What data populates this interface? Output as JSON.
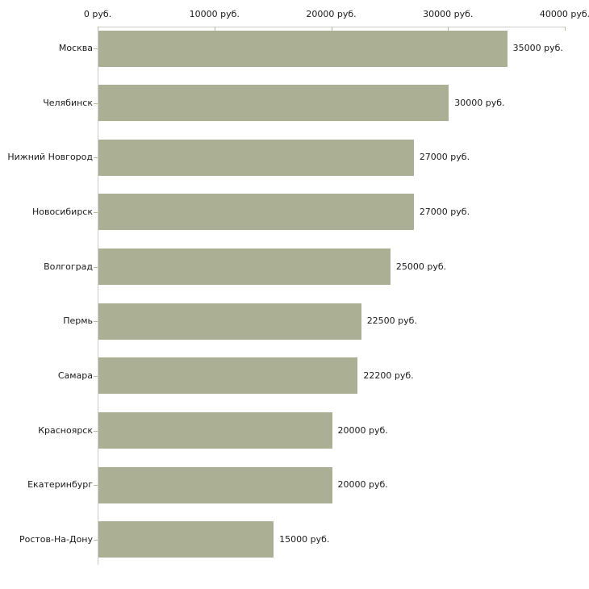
{
  "chart_data": {
    "type": "bar",
    "orientation": "horizontal",
    "title": "",
    "xlabel": "",
    "ylabel": "",
    "categories": [
      "Москва",
      "Челябинск",
      "Нижний Новгород",
      "Новосибирск",
      "Волгоград",
      "Пермь",
      "Самара",
      "Красноярск",
      "Екатеринбург",
      "Ростов-На-Дону"
    ],
    "values": [
      35000,
      30000,
      27000,
      27000,
      25000,
      22500,
      22200,
      20000,
      20000,
      15000
    ],
    "value_labels": [
      "35000 руб.",
      "30000 руб.",
      "27000 руб.",
      "27000 руб.",
      "25000 руб.",
      "22500 руб.",
      "22200 руб.",
      "20000 руб.",
      "20000 руб.",
      "15000 руб."
    ],
    "x_axis": {
      "position": "top",
      "xlim": [
        0,
        40000
      ],
      "ticks": [
        0,
        10000,
        20000,
        30000,
        40000
      ],
      "tick_labels": [
        "0 руб.",
        "10000 руб.",
        "20000 руб.",
        "30000 руб.",
        "40000 руб."
      ]
    },
    "grid": false,
    "legend": null,
    "colors": {
      "bar": "#abb094",
      "axis_line": "#cccccc",
      "tick": "#b6ba9c",
      "text": "#1a1a1a",
      "background": "#ffffff"
    }
  }
}
